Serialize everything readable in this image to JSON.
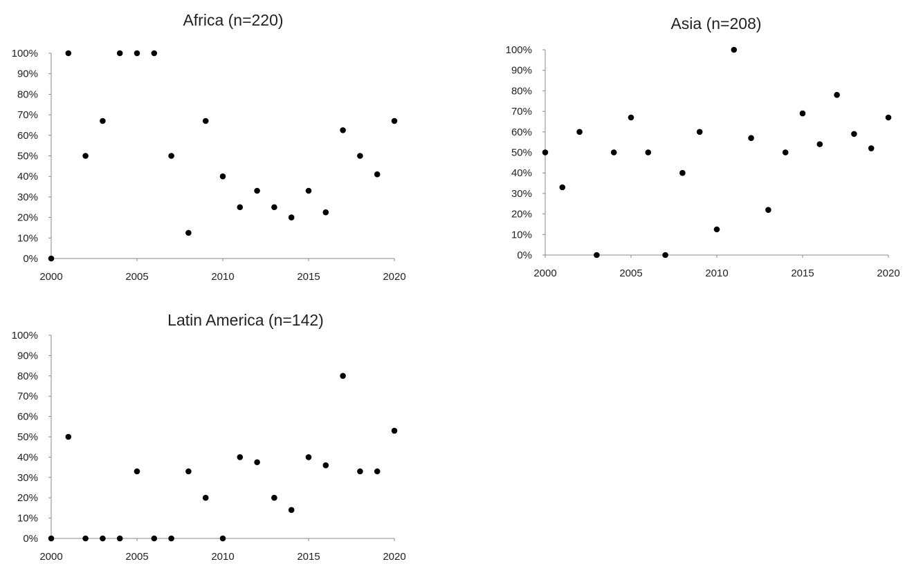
{
  "chart_data": [
    {
      "type": "scatter",
      "title": "Africa (n=220)",
      "xlabel": "",
      "ylabel": "",
      "xlim": [
        2000,
        2020
      ],
      "ylim": [
        0,
        100
      ],
      "x_ticks": [
        "2000",
        "2005",
        "2010",
        "2015",
        "2020"
      ],
      "y_ticks": [
        "0%",
        "10%",
        "20%",
        "30%",
        "40%",
        "50%",
        "60%",
        "70%",
        "80%",
        "90%",
        "100%"
      ],
      "grid": false,
      "legend": "none",
      "marker_color": "#000000",
      "points": [
        {
          "x": 2000,
          "y": 0
        },
        {
          "x": 2001,
          "y": 100
        },
        {
          "x": 2002,
          "y": 50
        },
        {
          "x": 2003,
          "y": 67
        },
        {
          "x": 2004,
          "y": 100
        },
        {
          "x": 2005,
          "y": 100
        },
        {
          "x": 2006,
          "y": 100
        },
        {
          "x": 2007,
          "y": 50
        },
        {
          "x": 2008,
          "y": 12.5
        },
        {
          "x": 2009,
          "y": 67
        },
        {
          "x": 2010,
          "y": 40
        },
        {
          "x": 2011,
          "y": 25
        },
        {
          "x": 2012,
          "y": 33
        },
        {
          "x": 2013,
          "y": 25
        },
        {
          "x": 2014,
          "y": 20
        },
        {
          "x": 2015,
          "y": 33
        },
        {
          "x": 2016,
          "y": 22.5
        },
        {
          "x": 2017,
          "y": 62.5
        },
        {
          "x": 2018,
          "y": 50
        },
        {
          "x": 2019,
          "y": 41
        },
        {
          "x": 2020,
          "y": 67
        }
      ]
    },
    {
      "type": "scatter",
      "title": "Asia (n=208)",
      "xlabel": "",
      "ylabel": "",
      "xlim": [
        2000,
        2020
      ],
      "ylim": [
        0,
        100
      ],
      "x_ticks": [
        "2000",
        "2005",
        "2010",
        "2015",
        "2020"
      ],
      "y_ticks": [
        "0%",
        "10%",
        "20%",
        "30%",
        "40%",
        "50%",
        "60%",
        "70%",
        "80%",
        "90%",
        "100%"
      ],
      "grid": false,
      "legend": "none",
      "marker_color": "#000000",
      "points": [
        {
          "x": 2000,
          "y": 50
        },
        {
          "x": 2001,
          "y": 33
        },
        {
          "x": 2002,
          "y": 60
        },
        {
          "x": 2003,
          "y": 0
        },
        {
          "x": 2004,
          "y": 50
        },
        {
          "x": 2005,
          "y": 67
        },
        {
          "x": 2006,
          "y": 50
        },
        {
          "x": 2007,
          "y": 0
        },
        {
          "x": 2008,
          "y": 40
        },
        {
          "x": 2009,
          "y": 60
        },
        {
          "x": 2010,
          "y": 12.5
        },
        {
          "x": 2011,
          "y": 100
        },
        {
          "x": 2012,
          "y": 57
        },
        {
          "x": 2013,
          "y": 22
        },
        {
          "x": 2014,
          "y": 50
        },
        {
          "x": 2015,
          "y": 69
        },
        {
          "x": 2016,
          "y": 54
        },
        {
          "x": 2017,
          "y": 78
        },
        {
          "x": 2018,
          "y": 59
        },
        {
          "x": 2019,
          "y": 52
        },
        {
          "x": 2020,
          "y": 67
        }
      ]
    },
    {
      "type": "scatter",
      "title": "Latin America (n=142)",
      "xlabel": "",
      "ylabel": "",
      "xlim": [
        2000,
        2020
      ],
      "ylim": [
        0,
        100
      ],
      "x_ticks": [
        "2000",
        "2005",
        "2010",
        "2015",
        "2020"
      ],
      "y_ticks": [
        "0%",
        "10%",
        "20%",
        "30%",
        "40%",
        "50%",
        "60%",
        "70%",
        "80%",
        "90%",
        "100%"
      ],
      "grid": false,
      "legend": "none",
      "marker_color": "#000000",
      "points": [
        {
          "x": 2000,
          "y": 0
        },
        {
          "x": 2001,
          "y": 50
        },
        {
          "x": 2002,
          "y": 0
        },
        {
          "x": 2003,
          "y": 0
        },
        {
          "x": 2004,
          "y": 0
        },
        {
          "x": 2005,
          "y": 33
        },
        {
          "x": 2006,
          "y": 0
        },
        {
          "x": 2007,
          "y": 0
        },
        {
          "x": 2008,
          "y": 33
        },
        {
          "x": 2009,
          "y": 20
        },
        {
          "x": 2010,
          "y": 0
        },
        {
          "x": 2011,
          "y": 40
        },
        {
          "x": 2012,
          "y": 37.5
        },
        {
          "x": 2013,
          "y": 20
        },
        {
          "x": 2014,
          "y": 14
        },
        {
          "x": 2015,
          "y": 40
        },
        {
          "x": 2016,
          "y": 36
        },
        {
          "x": 2017,
          "y": 80
        },
        {
          "x": 2018,
          "y": 33
        },
        {
          "x": 2019,
          "y": 33
        },
        {
          "x": 2020,
          "y": 53
        }
      ]
    }
  ]
}
